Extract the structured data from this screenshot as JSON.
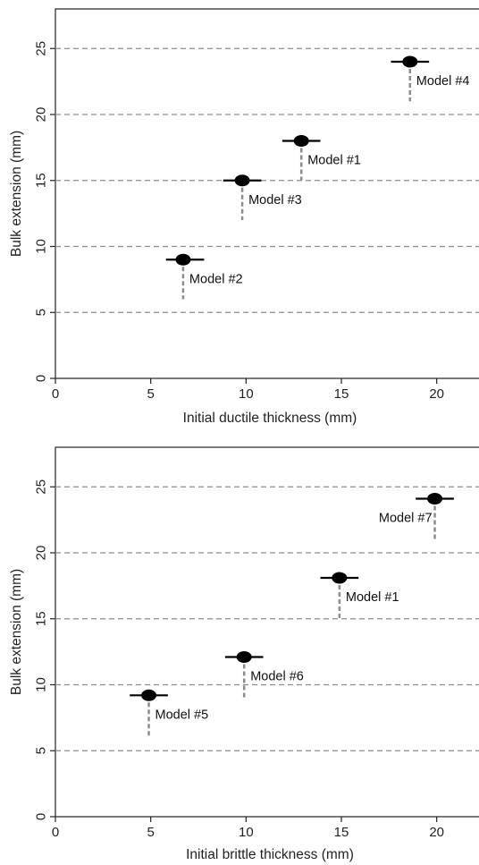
{
  "chart_data": [
    {
      "type": "scatter",
      "xlabel": "Initial ductile thickness (mm)",
      "ylabel": "Bulk extension (mm)",
      "xlim": [
        0,
        22.5
      ],
      "ylim": [
        0,
        28
      ],
      "xticks": [
        "0",
        "5",
        "10",
        "15",
        "20"
      ],
      "yticks": [
        "0",
        "5",
        "10",
        "15",
        "20",
        "25"
      ],
      "grid": "horizontal dashed at 5, 10, 15, 20, 25",
      "points": [
        {
          "label": "Model #2",
          "x": 6.7,
          "y": 9,
          "x_range": [
            5.8,
            7.8
          ],
          "y_low": 6,
          "label_side": "below-right"
        },
        {
          "label": "Model #3",
          "x": 9.8,
          "y": 15,
          "x_range": [
            8.8,
            10.8
          ],
          "y_low": 12,
          "label_side": "below-right"
        },
        {
          "label": "Model #1",
          "x": 12.9,
          "y": 18,
          "x_range": [
            11.9,
            13.9
          ],
          "y_low": 15,
          "label_side": "below-right"
        },
        {
          "label": "Model #4",
          "x": 18.6,
          "y": 24,
          "x_range": [
            17.6,
            19.6
          ],
          "y_low": 21,
          "label_side": "below-right"
        }
      ]
    },
    {
      "type": "scatter",
      "xlabel": "Initial brittle thickness (mm)",
      "ylabel": "Bulk extension (mm)",
      "xlim": [
        0,
        22.5
      ],
      "ylim": [
        0,
        28
      ],
      "xticks": [
        "0",
        "5",
        "10",
        "15",
        "20"
      ],
      "yticks": [
        "0",
        "5",
        "10",
        "15",
        "20",
        "25"
      ],
      "grid": "horizontal dashed at 5, 10, 15, 20, 25",
      "points": [
        {
          "label": "Model #5",
          "x": 4.9,
          "y": 9.2,
          "x_range": [
            3.9,
            5.9
          ],
          "y_low": 6,
          "label_side": "below-right"
        },
        {
          "label": "Model #6",
          "x": 9.9,
          "y": 12.1,
          "x_range": [
            8.9,
            10.9
          ],
          "y_low": 9,
          "label_side": "below-right"
        },
        {
          "label": "Model #1",
          "x": 14.9,
          "y": 18.1,
          "x_range": [
            13.9,
            15.9
          ],
          "y_low": 15,
          "label_side": "below-right"
        },
        {
          "label": "Model #7",
          "x": 19.9,
          "y": 24.1,
          "x_range": [
            18.9,
            20.9
          ],
          "y_low": 21,
          "label_side": "below-left"
        }
      ]
    }
  ]
}
